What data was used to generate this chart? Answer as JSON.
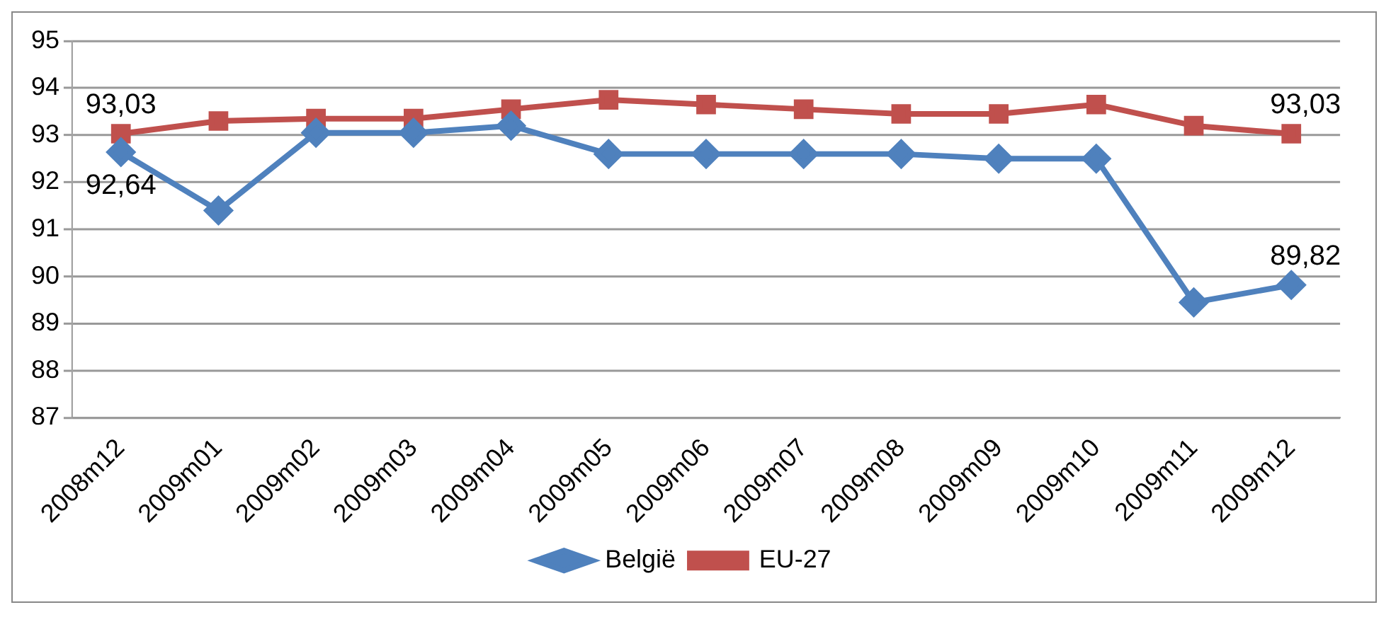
{
  "chart_data": {
    "type": "line",
    "categories": [
      "2008m12",
      "2009m01",
      "2009m02",
      "2009m03",
      "2009m04",
      "2009m05",
      "2009m06",
      "2009m07",
      "2009m08",
      "2009m09",
      "2009m10",
      "2009m11",
      "2009m12"
    ],
    "series": [
      {
        "name": "België",
        "color": "#4f81bd",
        "marker": "diamond",
        "values": [
          92.64,
          91.4,
          93.05,
          93.05,
          93.2,
          92.6,
          92.6,
          92.6,
          92.6,
          92.5,
          92.5,
          89.45,
          89.82
        ],
        "value_labels": [
          "92,64",
          null,
          null,
          null,
          null,
          null,
          null,
          null,
          null,
          null,
          null,
          null,
          "89,82"
        ]
      },
      {
        "name": "EU-27",
        "color": "#c0504d",
        "marker": "square",
        "values": [
          93.03,
          93.3,
          93.35,
          93.35,
          93.55,
          93.75,
          93.65,
          93.55,
          93.45,
          93.45,
          93.65,
          93.2,
          93.03
        ],
        "value_labels": [
          "93,03",
          null,
          null,
          null,
          null,
          null,
          null,
          null,
          null,
          null,
          null,
          null,
          "93,03"
        ]
      }
    ],
    "ylim": [
      87,
      95
    ],
    "yticks": [
      87,
      88,
      89,
      90,
      91,
      92,
      93,
      94,
      95
    ],
    "grid": "y",
    "legend": "bottom"
  }
}
